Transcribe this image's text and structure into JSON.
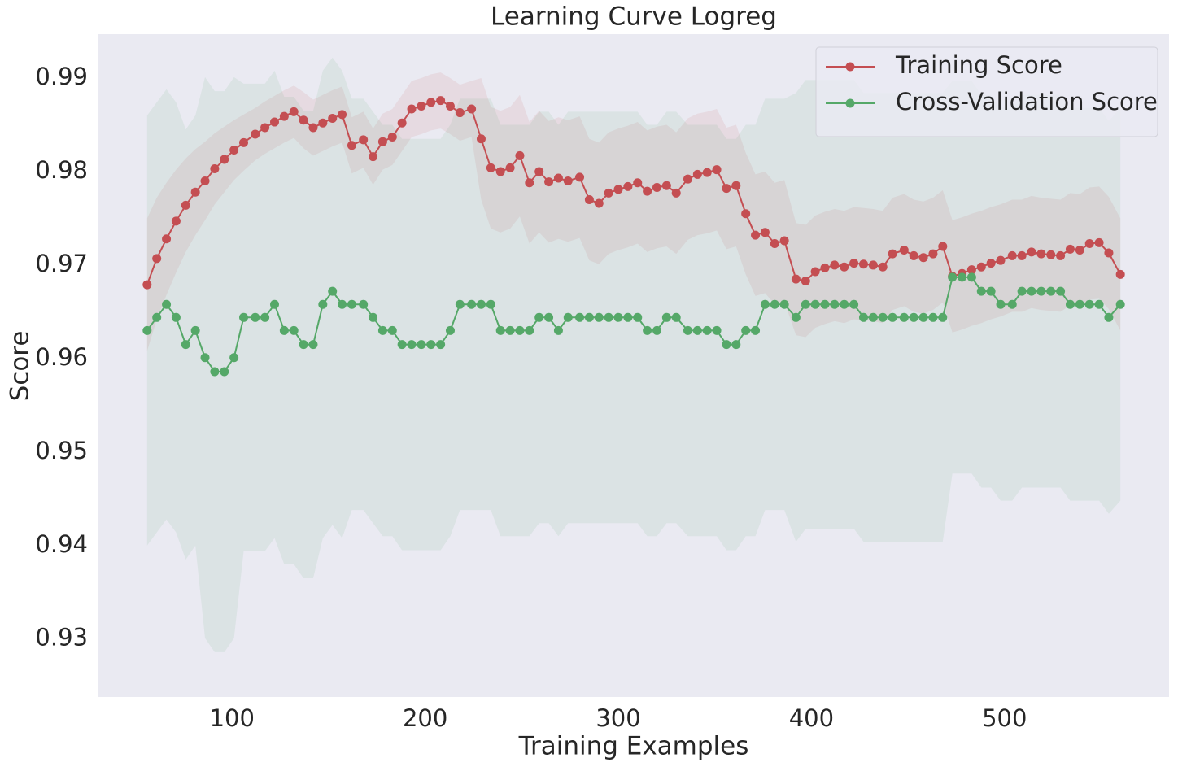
{
  "chart_data": {
    "type": "line",
    "title": "Learning Curve Logreg",
    "x_label": "Training Examples",
    "y_label": "Score",
    "legend": "upper right",
    "grid": false,
    "x": [
      56,
      61,
      66,
      71,
      76,
      81,
      86,
      91,
      96,
      101,
      106,
      112,
      117,
      122,
      127,
      132,
      137,
      142,
      147,
      152,
      157,
      162,
      168,
      173,
      178,
      183,
      188,
      193,
      198,
      203,
      208,
      213,
      218,
      224,
      229,
      234,
      239,
      244,
      249,
      254,
      259,
      264,
      269,
      274,
      280,
      285,
      290,
      295,
      300,
      305,
      310,
      315,
      320,
      325,
      330,
      336,
      341,
      346,
      351,
      356,
      361,
      366,
      371,
      376,
      381,
      386,
      392,
      397,
      402,
      407,
      412,
      417,
      422,
      427,
      432,
      437,
      442,
      448,
      453,
      458,
      463,
      468,
      473,
      478,
      483,
      488,
      493,
      498,
      504,
      509,
      514,
      519,
      524,
      529,
      534,
      539,
      544,
      549,
      554,
      560
    ],
    "xlim": [
      30.8,
      585.2
    ],
    "xticks": [
      100,
      200,
      300,
      400,
      500
    ],
    "ylim": [
      0.9238,
      0.9947
    ],
    "yticks": [
      0.93,
      0.94,
      0.95,
      0.96,
      0.97,
      0.98,
      0.99
    ],
    "series": [
      {
        "name": "Training Score",
        "color": "#c44e52",
        "values": [
          0.9679,
          0.9707,
          0.9728,
          0.9747,
          0.9764,
          0.9778,
          0.979,
          0.9803,
          0.9813,
          0.9823,
          0.9831,
          0.984,
          0.9847,
          0.9853,
          0.9859,
          0.9864,
          0.9855,
          0.9847,
          0.9852,
          0.9857,
          0.9861,
          0.9828,
          0.9834,
          0.9816,
          0.9832,
          0.9837,
          0.9852,
          0.9867,
          0.987,
          0.9874,
          0.9876,
          0.987,
          0.9863,
          0.9867,
          0.9835,
          0.9804,
          0.98,
          0.9804,
          0.9817,
          0.9788,
          0.98,
          0.9789,
          0.9793,
          0.979,
          0.9794,
          0.977,
          0.9766,
          0.9777,
          0.9781,
          0.9784,
          0.9788,
          0.9779,
          0.9783,
          0.9785,
          0.9777,
          0.9792,
          0.9797,
          0.9799,
          0.9802,
          0.9782,
          0.9785,
          0.9755,
          0.9732,
          0.9735,
          0.9723,
          0.9726,
          0.9685,
          0.9683,
          0.9693,
          0.9697,
          0.97,
          0.9698,
          0.9702,
          0.9701,
          0.97,
          0.9698,
          0.9712,
          0.9716,
          0.971,
          0.9708,
          0.9712,
          0.972,
          0.9688,
          0.9691,
          0.9695,
          0.9698,
          0.9702,
          0.9705,
          0.971,
          0.971,
          0.9714,
          0.9712,
          0.9711,
          0.971,
          0.9717,
          0.9716,
          0.9723,
          0.9724,
          0.9713,
          0.969
        ],
        "std": [
          0.0071,
          0.0065,
          0.006,
          0.0055,
          0.005,
          0.0046,
          0.0042,
          0.0038,
          0.0035,
          0.0032,
          0.003,
          0.0028,
          0.0028,
          0.0028,
          0.0028,
          0.0028,
          0.003,
          0.003,
          0.003,
          0.003,
          0.003,
          0.003,
          0.003,
          0.003,
          0.003,
          0.003,
          0.003,
          0.003,
          0.003,
          0.003,
          0.003,
          0.003,
          0.003,
          0.003,
          0.0065,
          0.0065,
          0.0065,
          0.0065,
          0.0065,
          0.0065,
          0.0065,
          0.0065,
          0.0065,
          0.0065,
          0.0065,
          0.0065,
          0.0065,
          0.0065,
          0.0065,
          0.0065,
          0.0065,
          0.0065,
          0.0065,
          0.0065,
          0.0065,
          0.0065,
          0.0065,
          0.0065,
          0.0065,
          0.0065,
          0.0065,
          0.0065,
          0.0065,
          0.0065,
          0.0065,
          0.0065,
          0.006,
          0.006,
          0.006,
          0.006,
          0.006,
          0.006,
          0.006,
          0.006,
          0.006,
          0.006,
          0.006,
          0.006,
          0.006,
          0.006,
          0.006,
          0.006,
          0.006,
          0.006,
          0.006,
          0.006,
          0.006,
          0.006,
          0.006,
          0.006,
          0.006,
          0.006,
          0.006,
          0.006,
          0.006,
          0.006,
          0.006,
          0.006,
          0.006,
          0.006
        ]
      },
      {
        "name": "Cross-Validation Score",
        "color": "#55a868",
        "values": [
          0.963,
          0.9644,
          0.9658,
          0.9644,
          0.9615,
          0.963,
          0.9601,
          0.9586,
          0.9586,
          0.9601,
          0.9644,
          0.9644,
          0.9644,
          0.9658,
          0.963,
          0.963,
          0.9615,
          0.9615,
          0.9658,
          0.9672,
          0.9658,
          0.9658,
          0.9658,
          0.9644,
          0.963,
          0.963,
          0.9615,
          0.9615,
          0.9615,
          0.9615,
          0.9615,
          0.963,
          0.9658,
          0.9658,
          0.9658,
          0.9658,
          0.963,
          0.963,
          0.963,
          0.963,
          0.9644,
          0.9644,
          0.963,
          0.9644,
          0.9644,
          0.9644,
          0.9644,
          0.9644,
          0.9644,
          0.9644,
          0.9644,
          0.963,
          0.963,
          0.9644,
          0.9644,
          0.963,
          0.963,
          0.963,
          0.963,
          0.9615,
          0.9615,
          0.963,
          0.963,
          0.9658,
          0.9658,
          0.9658,
          0.9644,
          0.9658,
          0.9658,
          0.9658,
          0.9658,
          0.9658,
          0.9658,
          0.9644,
          0.9644,
          0.9644,
          0.9644,
          0.9644,
          0.9644,
          0.9644,
          0.9644,
          0.9644,
          0.9687,
          0.9687,
          0.9687,
          0.9672,
          0.9672,
          0.9658,
          0.9658,
          0.9672,
          0.9672,
          0.9672,
          0.9672,
          0.9672,
          0.9658,
          0.9658,
          0.9658,
          0.9658,
          0.9644,
          0.9658
        ],
        "std": [
          0.023,
          0.023,
          0.023,
          0.023,
          0.023,
          0.023,
          0.03,
          0.03,
          0.03,
          0.03,
          0.025,
          0.025,
          0.025,
          0.025,
          0.025,
          0.025,
          0.025,
          0.025,
          0.025,
          0.025,
          0.025,
          0.022,
          0.022,
          0.022,
          0.022,
          0.022,
          0.022,
          0.022,
          0.022,
          0.022,
          0.022,
          0.022,
          0.022,
          0.022,
          0.022,
          0.022,
          0.022,
          0.022,
          0.022,
          0.022,
          0.022,
          0.022,
          0.022,
          0.022,
          0.022,
          0.022,
          0.022,
          0.022,
          0.022,
          0.022,
          0.022,
          0.022,
          0.022,
          0.022,
          0.022,
          0.022,
          0.022,
          0.022,
          0.022,
          0.022,
          0.022,
          0.022,
          0.022,
          0.022,
          0.022,
          0.022,
          0.024,
          0.024,
          0.024,
          0.024,
          0.024,
          0.024,
          0.024,
          0.024,
          0.024,
          0.024,
          0.024,
          0.024,
          0.024,
          0.024,
          0.024,
          0.024,
          0.021,
          0.021,
          0.021,
          0.021,
          0.021,
          0.021,
          0.021,
          0.021,
          0.021,
          0.021,
          0.021,
          0.021,
          0.021,
          0.021,
          0.021,
          0.021,
          0.021,
          0.021
        ]
      }
    ]
  }
}
